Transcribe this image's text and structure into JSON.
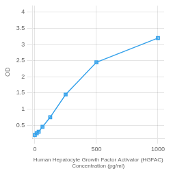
{
  "chart_data": {
    "type": "line",
    "x": [
      0,
      15.6,
      31.25,
      62.5,
      125,
      250,
      500,
      1000
    ],
    "values": [
      0.2,
      0.25,
      0.3,
      0.45,
      0.75,
      1.45,
      2.45,
      3.2
    ],
    "xlabel": "Human Hepatocyte Growth Factor Activator (HGFAC)\nConcentration (pg/ml)",
    "ylabel": "OD",
    "xlim": [
      -20,
      1050
    ],
    "ylim": [
      0.1,
      4.2
    ],
    "xticks": [
      0,
      500,
      1000
    ],
    "yticks": [
      0.5,
      1,
      1.5,
      2,
      2.5,
      3,
      3.5,
      4
    ],
    "grid": true,
    "marker": "square"
  }
}
